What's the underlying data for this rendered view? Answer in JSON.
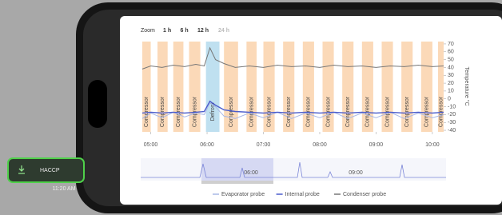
{
  "ui": {
    "zoom_label": "Zoom",
    "zoom_options": [
      "1 h",
      "6 h",
      "12 h",
      "24 h"
    ],
    "button": "HACCP",
    "time": "11:20 AM",
    "navigator_labels": [
      "06:00",
      "09:00"
    ]
  },
  "chart_data": {
    "type": "line",
    "y_label": "Temperature °C",
    "x": [
      4.85,
      5.0,
      5.2,
      5.4,
      5.6,
      5.8,
      5.95,
      6.05,
      6.15,
      6.3,
      6.5,
      6.75,
      7.0,
      7.25,
      7.5,
      7.75,
      8.0,
      8.25,
      8.5,
      8.75,
      9.0,
      9.25,
      9.5,
      9.75,
      10.0,
      10.2
    ],
    "series": [
      {
        "name": "Evaporator probe",
        "color": "#a9b8e6",
        "values": [
          -25,
          -18,
          -24,
          -17,
          -23,
          -18,
          -20,
          -5,
          -10,
          -22,
          -25,
          -18,
          -24,
          -17,
          -25,
          -18,
          -24,
          -17,
          -25,
          -18,
          -24,
          -17,
          -25,
          -18,
          -24,
          -20
        ]
      },
      {
        "name": "Internal probe",
        "color": "#4a5ccc",
        "values": [
          -18,
          -17,
          -18,
          -17,
          -18,
          -17,
          -16,
          -3,
          -8,
          -14,
          -16,
          -17,
          -18,
          -17,
          -18,
          -17,
          -18,
          -17,
          -18,
          -17,
          -18,
          -17,
          -18,
          -17,
          -18,
          -17
        ]
      },
      {
        "name": "Condenser probe",
        "color": "#777777",
        "values": [
          38,
          42,
          40,
          43,
          41,
          44,
          42,
          65,
          50,
          45,
          40,
          42,
          40,
          43,
          41,
          42,
          40,
          43,
          41,
          42,
          40,
          42,
          41,
          43,
          41,
          42
        ]
      }
    ],
    "bands": [
      {
        "start": 4.85,
        "end": 5.0,
        "label": "Compressor"
      },
      {
        "start": 5.12,
        "end": 5.3,
        "label": "Compressor"
      },
      {
        "start": 5.4,
        "end": 5.58,
        "label": "Compressor"
      },
      {
        "start": 5.68,
        "end": 5.88,
        "label": "Compressor"
      },
      {
        "start": 5.98,
        "end": 6.22,
        "label": "Defrost",
        "color": "#bfe0f0"
      },
      {
        "start": 6.3,
        "end": 6.55,
        "label": "Compressor"
      },
      {
        "start": 6.7,
        "end": 6.88,
        "label": "Compressor"
      },
      {
        "start": 7.0,
        "end": 7.2,
        "label": "Compressor"
      },
      {
        "start": 7.35,
        "end": 7.55,
        "label": "Compressor"
      },
      {
        "start": 7.7,
        "end": 7.9,
        "label": "Compressor"
      },
      {
        "start": 8.05,
        "end": 8.25,
        "label": "Compressor"
      },
      {
        "start": 8.4,
        "end": 8.6,
        "label": "Compressor"
      },
      {
        "start": 8.75,
        "end": 8.95,
        "label": "Compressor"
      },
      {
        "start": 9.1,
        "end": 9.3,
        "label": "Compressor"
      },
      {
        "start": 9.45,
        "end": 9.65,
        "label": "Compressor"
      },
      {
        "start": 9.8,
        "end": 10.0,
        "label": "Compressor"
      },
      {
        "start": 10.1,
        "end": 10.2,
        "label": "Compressor"
      }
    ],
    "band_color": "#fbd9b8",
    "xlim": [
      4.85,
      10.2
    ],
    "xticks": [
      {
        "value": 5,
        "label": "05:00"
      },
      {
        "value": 6,
        "label": "06:00"
      },
      {
        "value": 7,
        "label": "07:00"
      },
      {
        "value": 8,
        "label": "08:00"
      },
      {
        "value": 9,
        "label": "09:00"
      },
      {
        "value": 10,
        "label": "10:00"
      }
    ],
    "ylim": [
      -42,
      73
    ],
    "yticks": [
      70,
      60,
      50,
      40,
      30,
      20,
      10,
      0,
      -10,
      -20,
      -30,
      -40
    ]
  }
}
